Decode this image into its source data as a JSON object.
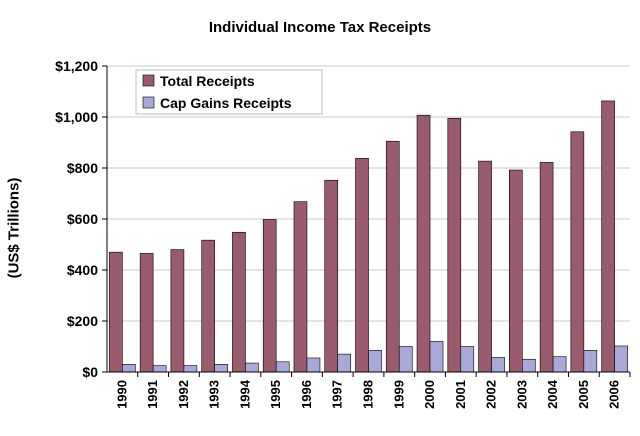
{
  "chart_data": {
    "type": "bar",
    "title": "Individual Income Tax Receipts",
    "xlabel": "",
    "ylabel": "(US$ Trillions)",
    "categories": [
      "1990",
      "1991",
      "1992",
      "1993",
      "1994",
      "1995",
      "1996",
      "1997",
      "1998",
      "1999",
      "2000",
      "2001",
      "2002",
      "2003",
      "2004",
      "2005",
      "2006"
    ],
    "series": [
      {
        "name": "Total Receipts",
        "color": "#9b5b6e",
        "values": [
          470,
          465,
          480,
          517,
          548,
          598,
          668,
          752,
          838,
          905,
          1007,
          995,
          827,
          792,
          822,
          942,
          1063
        ]
      },
      {
        "name": "Cap Gains Receipts",
        "color": "#a9a9d9",
        "values": [
          30,
          25,
          25,
          30,
          35,
          40,
          55,
          70,
          85,
          100,
          120,
          100,
          57,
          50,
          60,
          85,
          102
        ]
      }
    ],
    "ylim": [
      0,
      1200
    ],
    "yticks": [
      0,
      200,
      400,
      600,
      800,
      1000,
      1200
    ],
    "ytick_labels": [
      "$0",
      "$200",
      "$400",
      "$600",
      "$800",
      "$1,000",
      "$1,200"
    ],
    "grid": true,
    "legend_position": "top-left"
  }
}
